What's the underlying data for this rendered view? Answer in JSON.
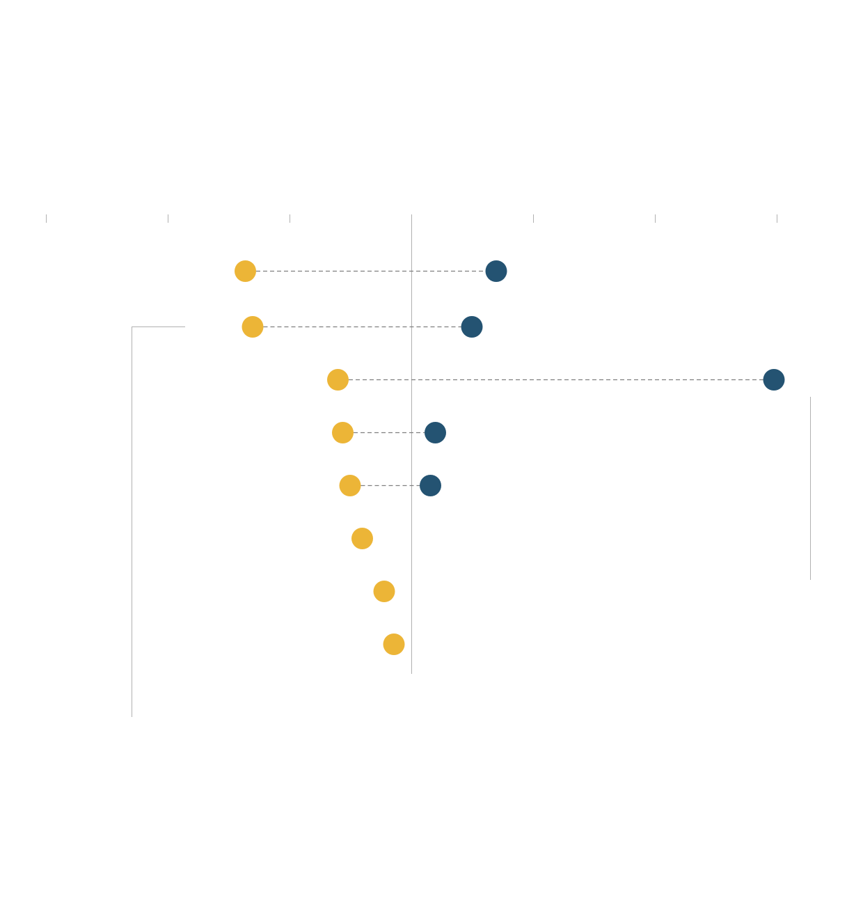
{
  "chart_data": {
    "type": "dot-plot",
    "title": "",
    "xlabel": "",
    "ylabel": "",
    "x_ticks": [
      -1.5,
      -1.0,
      -0.5,
      0.0,
      0.5,
      1.0,
      1.5
    ],
    "xlim": [
      -1.5,
      1.65
    ],
    "grid": false,
    "legend": "none",
    "series": [
      {
        "role": "start",
        "color": "#ecb537",
        "values": [
          -0.68,
          -0.65,
          -0.3,
          -0.28,
          -0.25,
          -0.2,
          -0.11,
          -0.07
        ]
      },
      {
        "role": "end",
        "color": "#245372",
        "values": [
          0.35,
          0.25,
          1.49,
          0.1,
          0.08,
          null,
          null,
          null
        ]
      }
    ],
    "connector_color": "#7f7f7f",
    "axis_color": "#b0b0b0"
  }
}
